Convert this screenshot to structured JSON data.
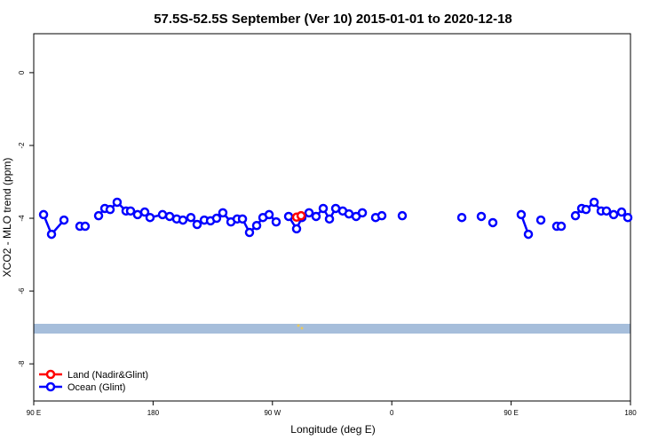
{
  "chart_data": {
    "type": "line",
    "title": "57.5S-52.5S September (Ver 10)   2015-01-01 to 2020-12-18",
    "x_label": "Longitude (deg E)",
    "y_label": "XCO2 - MLO trend (ppm)",
    "xlim": [
      90,
      540
    ],
    "ylim": [
      -9.02,
      1.07
    ],
    "xticks": [
      {
        "value": 90,
        "label": "90 E"
      },
      {
        "value": 180,
        "label": "180"
      },
      {
        "value": 270,
        "label": "90 W"
      },
      {
        "value": 360,
        "label": "0"
      },
      {
        "value": 450,
        "label": "90 E"
      },
      {
        "value": 540,
        "label": "180"
      }
    ],
    "yticks": [
      0,
      -2,
      -4,
      -6,
      -8
    ],
    "legend": "bottom-left",
    "series": [
      {
        "name": "Land (Nadir&Glint)",
        "color": "#ff0000",
        "x": [
          288.2,
          291.6
        ],
        "values": [
          -3.97,
          -3.93
        ]
      },
      {
        "name": "Ocean (Glint)",
        "color": "#0000ff",
        "x": [
          97.4,
          103.4,
          112.8,
          null,
          124.8,
          128.8,
          null,
          138.9,
          143.6,
          147.6,
          152.9,
          159.6,
          163.0,
          168.3,
          173.7,
          177.7,
          187.1,
          192.5,
          197.8,
          202.5,
          208.5,
          213.2,
          218.6,
          223.3,
          227.9,
          232.6,
          238.7,
          243.4,
          247.4,
          252.7,
          258.1,
          262.8,
          267.5,
          272.8,
          null,
          282.2,
          288.2,
          292.2,
          297.6,
          302.9,
          308.3,
          313.0,
          317.7,
          323.0,
          327.7,
          333.1,
          337.8,
          null,
          347.8,
          352.5,
          null,
          367.9,
          null,
          412.8,
          null,
          427.5,
          null,
          436.2,
          null,
          457.6,
          463.0,
          null,
          472.4,
          null,
          484.4,
          487.8,
          null,
          498.5,
          503.2,
          506.5,
          512.6,
          517.9,
          521.9,
          527.3,
          533.3,
          538.0
        ],
        "values": [
          -3.9,
          -4.44,
          -4.05,
          null,
          -4.22,
          -4.22,
          null,
          -3.93,
          -3.73,
          -3.76,
          -3.56,
          -3.8,
          -3.8,
          -3.9,
          -3.83,
          -3.98,
          -3.9,
          -3.95,
          -4.02,
          -4.05,
          -3.98,
          -4.17,
          -4.05,
          -4.07,
          -4.0,
          -3.85,
          -4.1,
          -4.02,
          -4.02,
          -4.39,
          -4.2,
          -3.98,
          -3.9,
          -4.1,
          null,
          -3.95,
          -4.29,
          -3.98,
          -3.85,
          -3.95,
          -3.73,
          -4.02,
          -3.73,
          -3.8,
          -3.88,
          -3.95,
          -3.85,
          null,
          -3.98,
          -3.93,
          null,
          -3.93,
          null,
          -3.98,
          null,
          -3.95,
          null,
          -4.12,
          null,
          -3.9,
          -4.44,
          null,
          -4.05,
          null,
          -4.22,
          -4.22,
          null,
          -3.93,
          -3.73,
          -3.76,
          -3.56,
          -3.8,
          -3.8,
          -3.9,
          -3.83,
          -3.98
        ]
      }
    ]
  }
}
